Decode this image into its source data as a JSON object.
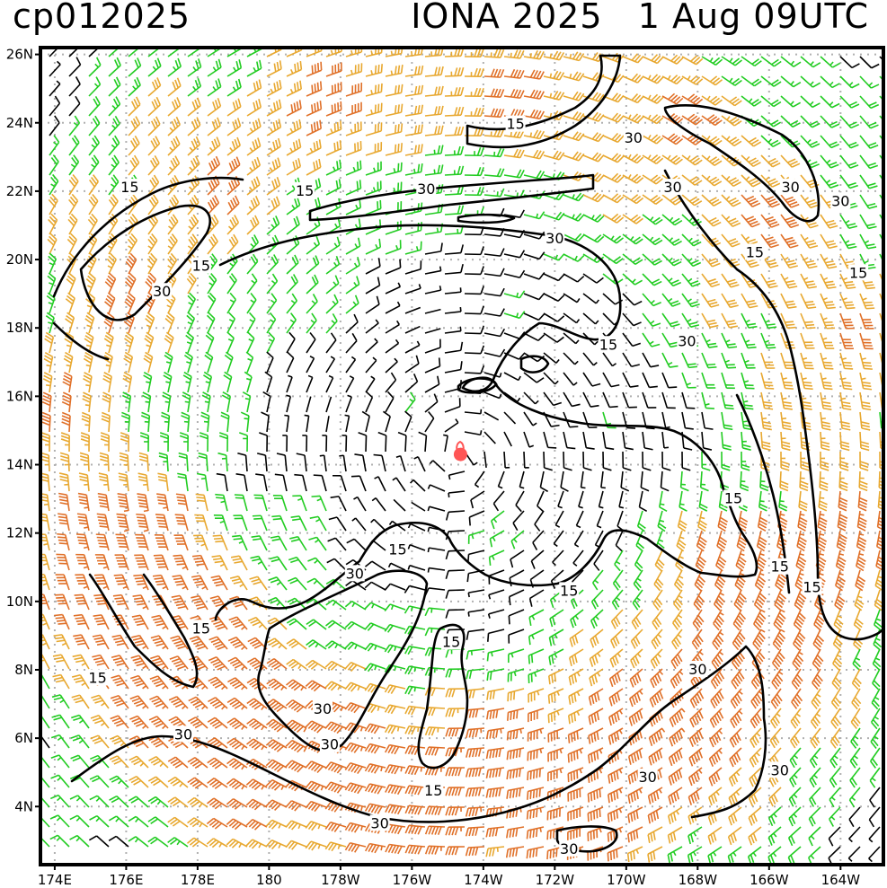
{
  "header": {
    "left_title": "cp012025",
    "right_title": "IONA 2025   1 Aug 09UTC"
  },
  "axes": {
    "lat_labels": [
      "26N",
      "24N",
      "22N",
      "20N",
      "18N",
      "16N",
      "14N",
      "12N",
      "10N",
      "8N",
      "6N",
      "4N"
    ],
    "lon_labels": [
      "174E",
      "176E",
      "178E",
      "180",
      "178W",
      "176W",
      "174W",
      "172W",
      "170W",
      "168W",
      "166W",
      "164W"
    ],
    "lat_range": [
      2.3,
      26.2
    ],
    "lon_range": [
      173.6,
      197.2
    ],
    "grid": "dotted gray at every 2 degrees"
  },
  "contours": {
    "levels": [
      "15",
      "30"
    ],
    "labels": [
      {
        "text": "15",
        "lon": 186.9,
        "lat": 23.95
      },
      {
        "text": "30",
        "lon": 190.2,
        "lat": 23.55
      },
      {
        "text": "15",
        "lon": 181.0,
        "lat": 22.0
      },
      {
        "text": "30",
        "lon": 184.4,
        "lat": 22.05
      },
      {
        "text": "15",
        "lon": 176.1,
        "lat": 22.1
      },
      {
        "text": "30",
        "lon": 188.0,
        "lat": 20.6
      },
      {
        "text": "30",
        "lon": 191.3,
        "lat": 22.1
      },
      {
        "text": "30",
        "lon": 194.6,
        "lat": 22.1
      },
      {
        "text": "30",
        "lon": 196.0,
        "lat": 21.7
      },
      {
        "text": "15",
        "lon": 178.1,
        "lat": 19.8
      },
      {
        "text": "30",
        "lon": 177.0,
        "lat": 19.05
      },
      {
        "text": "15",
        "lon": 193.6,
        "lat": 20.2
      },
      {
        "text": "15",
        "lon": 196.5,
        "lat": 19.6
      },
      {
        "text": "15",
        "lon": 189.5,
        "lat": 17.5
      },
      {
        "text": "30",
        "lon": 191.7,
        "lat": 17.6
      },
      {
        "text": "15",
        "lon": 193.0,
        "lat": 13.0
      },
      {
        "text": "15",
        "lon": 183.6,
        "lat": 11.5
      },
      {
        "text": "30",
        "lon": 182.4,
        "lat": 10.8
      },
      {
        "text": "15",
        "lon": 194.3,
        "lat": 11.0
      },
      {
        "text": "15",
        "lon": 188.4,
        "lat": 10.3
      },
      {
        "text": "15",
        "lon": 195.2,
        "lat": 10.4
      },
      {
        "text": "15",
        "lon": 178.1,
        "lat": 9.2
      },
      {
        "text": "15",
        "lon": 185.1,
        "lat": 8.8
      },
      {
        "text": "15",
        "lon": 175.2,
        "lat": 7.75
      },
      {
        "text": "30",
        "lon": 192.0,
        "lat": 8.0
      },
      {
        "text": "30",
        "lon": 181.5,
        "lat": 6.85
      },
      {
        "text": "30",
        "lon": 177.6,
        "lat": 6.1
      },
      {
        "text": "30",
        "lon": 181.7,
        "lat": 5.8
      },
      {
        "text": "30",
        "lon": 194.3,
        "lat": 5.05
      },
      {
        "text": "30",
        "lon": 190.6,
        "lat": 4.85
      },
      {
        "text": "15",
        "lon": 184.6,
        "lat": 4.45
      },
      {
        "text": "30",
        "lon": 183.1,
        "lat": 3.5
      },
      {
        "text": "30",
        "lon": 188.4,
        "lat": 2.75
      }
    ]
  },
  "storm_center": {
    "lon": 185.36,
    "lat": 14.3
  },
  "colors": {
    "barb_calm": "#000000",
    "barb_moderate": "#22cc22",
    "barb_strong": "#e8a830",
    "barb_very_strong": "#e07028",
    "storm_marker": "#ff5555",
    "contour": "#000000",
    "grid": "#b0b0b0"
  }
}
